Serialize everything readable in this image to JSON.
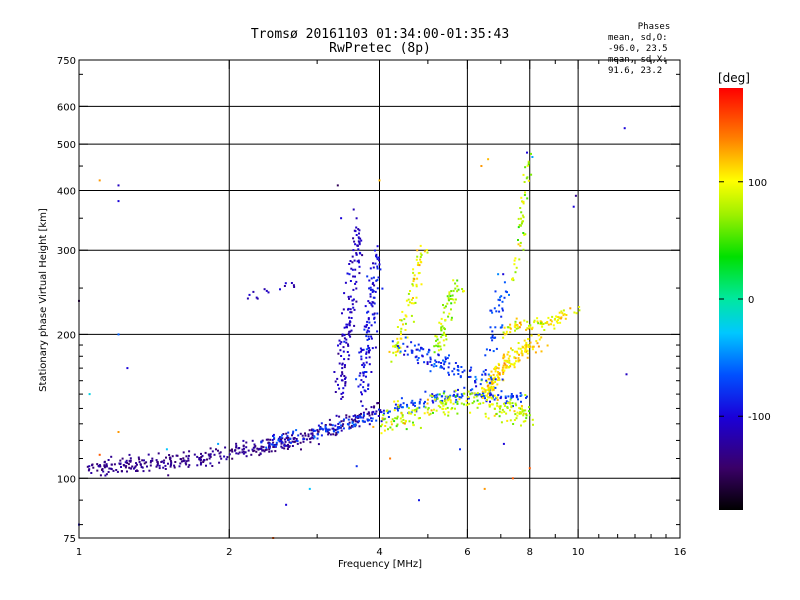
{
  "title_line1": "Tromsø 20161103 01:34:00-01:35:43",
  "title_line2": "RwPretec (8p)",
  "phases_box": {
    "header": "Phases",
    "line_O": "mean, sd,O: -96.0, 23.5",
    "line_X": "mean, sd,X:  91.6, 23.2"
  },
  "colorbar": {
    "label": "[deg]",
    "ticks": [
      {
        "value": 100,
        "label": "100"
      },
      {
        "value": 0,
        "label": "0"
      },
      {
        "value": -100,
        "label": "-100"
      }
    ],
    "range": [
      -180,
      180
    ],
    "colormap": "rainbow"
  },
  "chart_data": {
    "type": "scatter",
    "title": "Tromsø 20161103 01:34:00-01:35:43",
    "subtitle": "RwPretec (8p)",
    "xlabel": "Frequency [MHz]",
    "ylabel": "Stationary phase Virtual Height [km]",
    "xscale": "log",
    "yscale": "log",
    "xlim": [
      1,
      16
    ],
    "ylim": [
      75,
      750
    ],
    "xticks": [
      {
        "value": 1,
        "label": "1"
      },
      {
        "value": 2,
        "label": "2"
      },
      {
        "value": 4,
        "label": "4"
      },
      {
        "value": 6,
        "label": "6"
      },
      {
        "value": 8,
        "label": "8"
      },
      {
        "value": 10,
        "label": "10"
      },
      {
        "value": 16,
        "label": "16"
      }
    ],
    "xminor": [
      3,
      5,
      7,
      9,
      11,
      12,
      13,
      14,
      15
    ],
    "yticks": [
      {
        "value": 75,
        "label": "75"
      },
      {
        "value": 100,
        "label": "100"
      },
      {
        "value": 200,
        "label": "200"
      },
      {
        "value": 300,
        "label": "300"
      },
      {
        "value": 400,
        "label": "400"
      },
      {
        "value": 500,
        "label": "500"
      },
      {
        "value": 600,
        "label": "600"
      },
      {
        "value": 750,
        "label": "750"
      }
    ],
    "xgrid": [
      2,
      4,
      6,
      8,
      10
    ],
    "ygrid": [
      100,
      200,
      300,
      400,
      500,
      600
    ],
    "series": [
      {
        "type": "trace",
        "points": [
          [
            1.05,
            104
          ],
          [
            1.2,
            106
          ],
          [
            1.4,
            107
          ],
          [
            1.6,
            109
          ],
          [
            1.8,
            111
          ],
          [
            2.0,
            113
          ],
          [
            2.3,
            116
          ],
          [
            2.6,
            119
          ],
          [
            2.9,
            123
          ],
          [
            3.2,
            127
          ],
          [
            3.5,
            131
          ],
          [
            3.8,
            136
          ],
          [
            4.0,
            140
          ]
        ],
        "spread": 0.04,
        "jitter": 0.015,
        "phase": -130,
        "phase_sd": 15,
        "count": 420
      },
      {
        "type": "trace",
        "points": [
          [
            2.3,
            118
          ],
          [
            2.7,
            122
          ],
          [
            3.1,
            126
          ],
          [
            3.5,
            130
          ],
          [
            3.9,
            134
          ],
          [
            4.3,
            140
          ],
          [
            4.8,
            144
          ],
          [
            5.3,
            147
          ],
          [
            5.8,
            150
          ],
          [
            6.3,
            150
          ],
          [
            7.0,
            148
          ],
          [
            7.8,
            147
          ]
        ],
        "spread": 0.03,
        "jitter": 0.02,
        "phase": -75,
        "phase_sd": 25,
        "count": 240
      },
      {
        "type": "trace",
        "points": [
          [
            3.3,
            150
          ],
          [
            3.45,
            200
          ],
          [
            3.55,
            260
          ],
          [
            3.6,
            300
          ],
          [
            3.62,
            340
          ]
        ],
        "spread": 0.06,
        "jitter": 0.03,
        "phase": -110,
        "phase_sd": 20,
        "count": 140
      },
      {
        "type": "trace",
        "points": [
          [
            3.7,
            150
          ],
          [
            3.8,
            200
          ],
          [
            3.9,
            250
          ],
          [
            4.0,
            300
          ]
        ],
        "spread": 0.06,
        "jitter": 0.03,
        "phase": -95,
        "phase_sd": 25,
        "count": 130
      },
      {
        "type": "trace",
        "points": [
          [
            4.0,
            130
          ],
          [
            4.5,
            135
          ],
          [
            5.0,
            140
          ],
          [
            5.5,
            145
          ],
          [
            6.0,
            148
          ],
          [
            6.5,
            145
          ],
          [
            7.0,
            140
          ],
          [
            7.5,
            138
          ],
          [
            8.0,
            136
          ]
        ],
        "spread": 0.06,
        "jitter": 0.03,
        "phase": 85,
        "phase_sd": 35,
        "count": 230
      },
      {
        "type": "trace",
        "points": [
          [
            4.3,
            180
          ],
          [
            4.6,
            230
          ],
          [
            4.9,
            300
          ]
        ],
        "spread": 0.05,
        "jitter": 0.03,
        "phase": 95,
        "phase_sd": 30,
        "count": 80
      },
      {
        "type": "trace",
        "points": [
          [
            5.2,
            180
          ],
          [
            5.5,
            230
          ],
          [
            5.8,
            260
          ]
        ],
        "spread": 0.05,
        "jitter": 0.03,
        "phase": 75,
        "phase_sd": 30,
        "count": 70
      },
      {
        "type": "trace",
        "points": [
          [
            6.5,
            150
          ],
          [
            7.0,
            170
          ],
          [
            7.5,
            180
          ],
          [
            8.0,
            190
          ],
          [
            8.5,
            195
          ]
        ],
        "spread": 0.04,
        "jitter": 0.03,
        "phase": 110,
        "phase_sd": 25,
        "count": 170
      },
      {
        "type": "trace",
        "points": [
          [
            7.0,
            200
          ],
          [
            7.5,
            210
          ],
          [
            8.0,
            210
          ],
          [
            8.6,
            210
          ],
          [
            9.4,
            220
          ],
          [
            10.0,
            225
          ]
        ],
        "spread": 0.03,
        "jitter": 0.02,
        "phase": 100,
        "phase_sd": 30,
        "count": 90
      },
      {
        "type": "trace",
        "points": [
          [
            7.4,
            250
          ],
          [
            7.6,
            300
          ],
          [
            7.8,
            380
          ],
          [
            8.0,
            480
          ]
        ],
        "spread": 0.03,
        "jitter": 0.02,
        "phase": 80,
        "phase_sd": 40,
        "count": 50
      },
      {
        "type": "trace",
        "points": [
          [
            4.4,
            190
          ],
          [
            5.0,
            180
          ],
          [
            5.6,
            170
          ],
          [
            6.2,
            165
          ],
          [
            6.8,
            160
          ]
        ],
        "spread": 0.05,
        "jitter": 0.04,
        "phase": -80,
        "phase_sd": 30,
        "count": 110
      },
      {
        "type": "trace",
        "points": [
          [
            2.2,
            240
          ],
          [
            2.4,
            245
          ],
          [
            2.6,
            250
          ],
          [
            2.7,
            255
          ]
        ],
        "spread": 0.02,
        "jitter": 0.02,
        "phase": -110,
        "phase_sd": 15,
        "count": 14
      },
      {
        "type": "trace",
        "points": [
          [
            6.6,
            180
          ],
          [
            6.9,
            220
          ],
          [
            7.1,
            260
          ]
        ],
        "spread": 0.05,
        "jitter": 0.03,
        "phase": -70,
        "phase_sd": 25,
        "count": 40
      }
    ],
    "outliers": [
      [
        1.2,
        410,
        -110
      ],
      [
        1.2,
        380,
        -100
      ],
      [
        1.1,
        420,
        130
      ],
      [
        1.2,
        200,
        -60
      ],
      [
        1.25,
        170,
        -100
      ],
      [
        1.05,
        150,
        -20
      ],
      [
        1.0,
        235,
        -150
      ],
      [
        1.0,
        80,
        -100
      ],
      [
        1.1,
        112,
        150
      ],
      [
        1.2,
        125,
        130
      ],
      [
        1.5,
        115,
        -30
      ],
      [
        1.9,
        118,
        -40
      ],
      [
        2.6,
        88,
        -100
      ],
      [
        2.45,
        75,
        150
      ],
      [
        2.9,
        95,
        -30
      ],
      [
        4.8,
        90,
        -90
      ],
      [
        3.3,
        410,
        -150
      ],
      [
        3.35,
        350,
        -100
      ],
      [
        4.0,
        420,
        120
      ],
      [
        6.4,
        450,
        130
      ],
      [
        6.6,
        465,
        120
      ],
      [
        7.9,
        480,
        -100
      ],
      [
        8.1,
        470,
        -40
      ],
      [
        9.8,
        370,
        -100
      ],
      [
        9.9,
        390,
        -130
      ],
      [
        12.4,
        540,
        -100
      ],
      [
        12.5,
        165,
        -110
      ],
      [
        3.6,
        106,
        -80
      ],
      [
        4.2,
        110,
        140
      ],
      [
        5.8,
        115,
        -80
      ],
      [
        6.5,
        95,
        130
      ],
      [
        7.4,
        100,
        150
      ],
      [
        8.0,
        105,
        150
      ],
      [
        7.1,
        118,
        -100
      ]
    ]
  }
}
